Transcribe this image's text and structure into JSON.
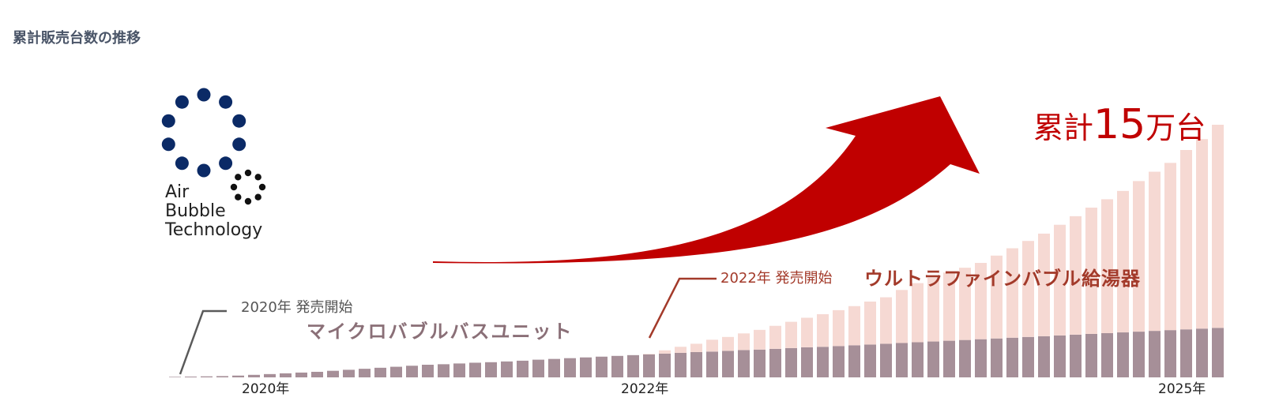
{
  "page_title": "累計販売台数の推移",
  "logo": {
    "lines": [
      "Air",
      "Bubble",
      "Technology"
    ],
    "dot_color": "#0b2a66",
    "small_dot_color": "#111111"
  },
  "annotations": {
    "launch1": "2020年 発売開始",
    "product1": "マイクロバブルバスユニット",
    "launch2": "2022年 発売開始",
    "product2": "ウルトラファインバブル給湯器"
  },
  "headline": {
    "prefix": "累計",
    "number": "15",
    "unit": "万台"
  },
  "colors": {
    "series1": "#a68f98",
    "series2": "#f6d9d3",
    "arrow": "#c00000",
    "headline": "#c00000"
  },
  "chart_data": {
    "type": "bar",
    "stacked": true,
    "x_tick_labels": [
      {
        "label": "2020年",
        "index": 6
      },
      {
        "label": "2022年",
        "index": 30
      },
      {
        "label": "2025年",
        "index": 64
      }
    ],
    "series": [
      {
        "values": [
          0.02,
          0.03,
          0.04,
          0.05,
          0.07,
          0.1,
          0.13,
          0.16,
          0.19,
          0.22,
          0.26,
          0.3,
          0.34,
          0.38,
          0.42,
          0.46,
          0.5,
          0.52,
          0.55,
          0.58,
          0.6,
          0.63,
          0.66,
          0.7,
          0.73,
          0.76,
          0.79,
          0.82,
          0.85,
          0.88,
          0.91,
          0.94,
          0.97,
          1.0,
          1.02,
          1.05,
          1.08,
          1.1,
          1.13,
          1.16,
          1.19,
          1.21,
          1.24,
          1.27,
          1.3,
          1.33,
          1.36,
          1.39,
          1.42,
          1.45,
          1.48,
          1.51,
          1.54,
          1.57,
          1.6,
          1.63,
          1.66,
          1.69,
          1.72,
          1.75,
          1.78,
          1.81,
          1.84,
          1.87,
          1.9,
          1.93,
          1.96
        ]
      },
      {
        "values": [
          0,
          0,
          0,
          0,
          0,
          0,
          0,
          0,
          0,
          0,
          0,
          0,
          0,
          0,
          0,
          0,
          0,
          0,
          0,
          0,
          0,
          0,
          0,
          0,
          0,
          0,
          0,
          0,
          0,
          0,
          0.02,
          0.13,
          0.24,
          0.33,
          0.47,
          0.55,
          0.66,
          0.78,
          0.91,
          1.04,
          1.17,
          1.29,
          1.42,
          1.55,
          1.7,
          1.84,
          2.1,
          2.34,
          2.52,
          2.7,
          2.86,
          3.02,
          3.28,
          3.54,
          3.8,
          4.06,
          4.38,
          4.69,
          5.0,
          5.3,
          5.6,
          5.96,
          6.3,
          6.62,
          7.1,
          7.5,
          8.04
        ]
      }
    ]
  }
}
